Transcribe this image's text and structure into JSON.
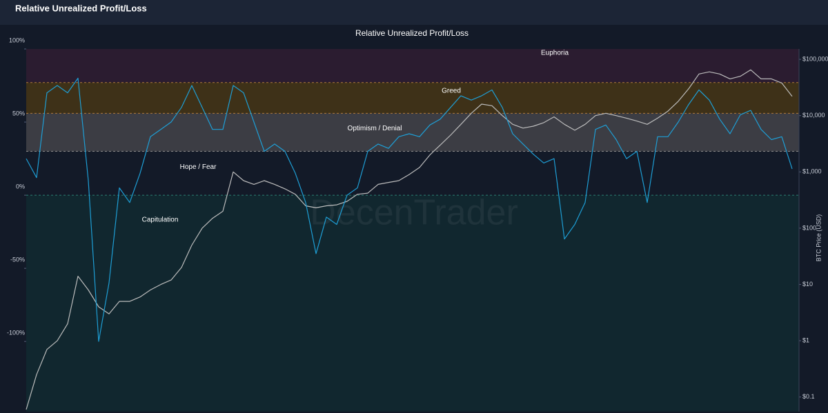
{
  "header": {
    "title": "Relative Unrealized Profit/Loss"
  },
  "chart_data": {
    "type": "line",
    "title": "Relative Unrealized Profit/Loss",
    "y2label": "BTC Price (USD)",
    "watermark": "DecenTrader",
    "ylim": [
      -148,
      100
    ],
    "yticks": [
      {
        "value": -100,
        "label": "-100%"
      },
      {
        "value": -50,
        "label": "-50%"
      },
      {
        "value": 0,
        "label": "0%"
      },
      {
        "value": 50,
        "label": "50%"
      },
      {
        "value": 100,
        "label": "100%"
      }
    ],
    "y2lim": [
      0.055,
      153000
    ],
    "y2scale": "log",
    "y2ticks": [
      {
        "value": 0.1,
        "label": "$0.1"
      },
      {
        "value": 1,
        "label": "$1"
      },
      {
        "value": 10,
        "label": "$10"
      },
      {
        "value": 100,
        "label": "$100"
      },
      {
        "value": 1000,
        "label": "$1,000"
      },
      {
        "value": 10000,
        "label": "$10,000"
      },
      {
        "value": 100000,
        "label": "$100,000"
      }
    ],
    "zones": [
      {
        "label": "Euphoria",
        "from": 77,
        "to": 100,
        "color": "#2b1c30",
        "line": "#b07a3a"
      },
      {
        "label": "Greed",
        "from": 56,
        "to": 77,
        "color": "#3e3118",
        "line": "#b07a3a"
      },
      {
        "label": "Optimism / Denial",
        "from": 30,
        "to": 56,
        "color": "#3c3d44",
        "line": "#8a8a8a"
      },
      {
        "label": "Hope / Fear",
        "from": 0,
        "to": 30,
        "color": "#131a28",
        "line": "#2e7f74"
      },
      {
        "label": "Capitulation",
        "from": -148,
        "to": 0,
        "color": "#11272f",
        "line": "#2e7f74"
      }
    ],
    "series": [
      {
        "color": "#1e9fd6",
        "values": [
          25,
          12,
          70,
          75,
          70,
          80,
          10,
          -100,
          -60,
          5,
          -5,
          15,
          40,
          45,
          50,
          60,
          75,
          60,
          45,
          45,
          75,
          70,
          50,
          30,
          35,
          30,
          15,
          -5,
          -40,
          -15,
          -20,
          0,
          5,
          30,
          35,
          32,
          40,
          42,
          40,
          48,
          52,
          60,
          68,
          65,
          68,
          72,
          60,
          42,
          35,
          28,
          22,
          25,
          -30,
          -20,
          -5,
          45,
          48,
          38,
          25,
          30,
          -5,
          40,
          40,
          50,
          62,
          72,
          65,
          52,
          42,
          55,
          58,
          45,
          38,
          40,
          18
        ]
      },
      {
        "color": "#bdbdbd",
        "axis": "y2",
        "values": [
          0.06,
          0.25,
          0.7,
          1,
          2,
          14,
          8,
          4,
          3,
          5,
          5,
          6,
          8,
          10,
          12,
          20,
          50,
          100,
          150,
          200,
          1000,
          700,
          600,
          700,
          600,
          500,
          400,
          250,
          230,
          250,
          260,
          300,
          400,
          420,
          600,
          650,
          700,
          900,
          1200,
          2000,
          3000,
          4500,
          7000,
          11000,
          16000,
          15000,
          10000,
          7000,
          6000,
          6500,
          7500,
          9500,
          7000,
          5500,
          7000,
          10000,
          11000,
          10000,
          9000,
          8000,
          7000,
          9000,
          12000,
          18000,
          30000,
          55000,
          60000,
          55000,
          45000,
          50000,
          65000,
          45000,
          45000,
          38000,
          22000
        ]
      }
    ]
  }
}
